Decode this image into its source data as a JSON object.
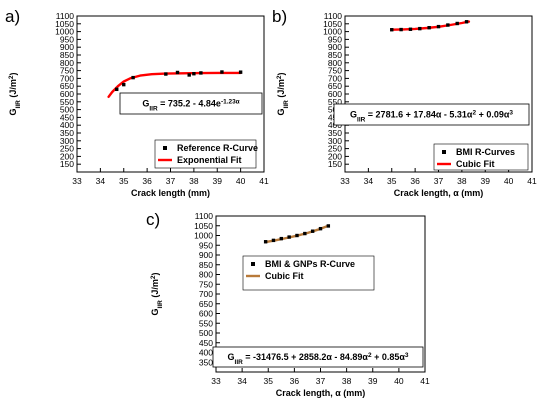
{
  "chart_data": [
    {
      "panel": "a)",
      "type": "scatter",
      "xlabel": "Crack length (mm)",
      "ylabel": "G_IIR (J/m^2)",
      "xlim": [
        33,
        41
      ],
      "ylim": [
        100,
        1100
      ],
      "xticks": [
        33,
        34,
        35,
        36,
        37,
        38,
        39,
        40,
        41
      ],
      "yticks": [
        150,
        200,
        250,
        300,
        350,
        400,
        450,
        500,
        550,
        600,
        650,
        700,
        750,
        800,
        850,
        900,
        950,
        1000,
        1050,
        1100
      ],
      "equation": "G_IIR = 735.2 - 4.84e^-1.23α",
      "legend_position": "bottom-right",
      "series": [
        {
          "name": "Reference R-Curve",
          "kind": "points",
          "color": "#000000",
          "x": [
            34.7,
            35.0,
            35.4,
            36.8,
            37.3,
            37.8,
            38.0,
            38.3,
            39.2,
            40.0
          ],
          "y": [
            630,
            660,
            705,
            728,
            738,
            722,
            730,
            735,
            741,
            740
          ]
        },
        {
          "name": "Exponential Fit",
          "kind": "line",
          "color": "#ff0000",
          "x": [
            34.35,
            34.5,
            34.75,
            35.0,
            35.3,
            35.7,
            36.2,
            36.8,
            37.5,
            38.3,
            39.0,
            40.0
          ],
          "y": [
            582,
            612,
            650,
            680,
            702,
            718,
            727,
            731,
            733,
            734,
            735,
            735
          ]
        }
      ]
    },
    {
      "panel": "b)",
      "type": "scatter",
      "xlabel": "Crack length, α (mm)",
      "ylabel": "G_IIR (J/m^2)",
      "xlim": [
        33,
        41
      ],
      "ylim": [
        100,
        1100
      ],
      "xticks": [
        33,
        34,
        35,
        36,
        37,
        38,
        39,
        40,
        41
      ],
      "yticks": [
        150,
        200,
        250,
        300,
        350,
        400,
        450,
        500,
        550,
        600,
        650,
        700,
        750,
        800,
        850,
        900,
        950,
        1000,
        1050,
        1100
      ],
      "equation": "G_IIR = 2781.6 + 17.84α - 5.31α^2 + 0.09α^3",
      "legend_position": "bottom-right",
      "series": [
        {
          "name": "BMI R-Curves",
          "kind": "points",
          "color": "#000000",
          "x": [
            35.0,
            35.4,
            35.8,
            36.2,
            36.6,
            37.0,
            37.4,
            37.8,
            38.2
          ],
          "y": [
            1012,
            1013,
            1015,
            1019,
            1025,
            1032,
            1042,
            1052,
            1063
          ]
        },
        {
          "name": "Cubic Fit",
          "kind": "line",
          "color": "#ff0000",
          "x": [
            35.0,
            35.5,
            36.0,
            36.5,
            37.0,
            37.5,
            38.0,
            38.3
          ],
          "y": [
            1012,
            1014,
            1017,
            1023,
            1031,
            1042,
            1055,
            1064
          ]
        }
      ]
    },
    {
      "panel": "c)",
      "type": "scatter",
      "xlabel": "Crack length, α (mm)",
      "ylabel": "G_IIR (J/m^2)",
      "xlim": [
        33,
        41
      ],
      "ylim": [
        300,
        1100
      ],
      "xticks": [
        33,
        34,
        35,
        36,
        37,
        38,
        39,
        40,
        41
      ],
      "yticks": [
        350,
        400,
        450,
        500,
        550,
        600,
        650,
        700,
        750,
        800,
        850,
        900,
        950,
        1000,
        1050,
        1100
      ],
      "equation": "G_IIR = -31476.5 + 2858.2α - 84.89α^2 + 0.85α^3",
      "legend_position": "top-left",
      "series": [
        {
          "name": "BMI & GNPs  R-Curve",
          "kind": "points",
          "color": "#000000",
          "x": [
            34.9,
            35.2,
            35.5,
            35.8,
            36.1,
            36.4,
            36.7,
            37.0,
            37.3
          ],
          "y": [
            968,
            975,
            984,
            992,
            1000,
            1010,
            1022,
            1035,
            1049
          ]
        },
        {
          "name": "Cubic Fit",
          "kind": "line",
          "color": "#b87a3a",
          "x": [
            34.9,
            35.3,
            35.7,
            36.1,
            36.5,
            36.9,
            37.3
          ],
          "y": [
            966,
            976,
            987,
            999,
            1013,
            1030,
            1050
          ]
        }
      ]
    }
  ]
}
